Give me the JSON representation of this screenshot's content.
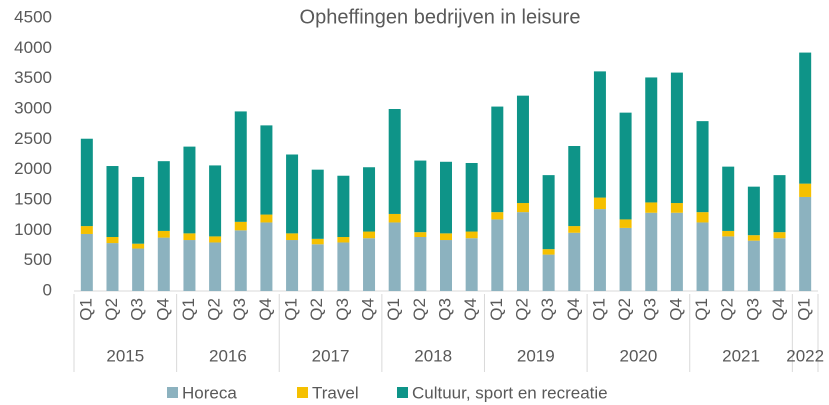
{
  "chart_data": {
    "type": "stacked-bar",
    "title": "Opheffingen bedrijven in leisure",
    "categories": [
      "Q1",
      "Q2",
      "Q3",
      "Q4",
      "Q1",
      "Q2",
      "Q3",
      "Q4",
      "Q1",
      "Q2",
      "Q3",
      "Q4",
      "Q1",
      "Q2",
      "Q3",
      "Q4",
      "Q1",
      "Q2",
      "Q3",
      "Q4",
      "Q1",
      "Q2",
      "Q3",
      "Q4",
      "Q1",
      "Q2",
      "Q3",
      "Q4",
      "Q1"
    ],
    "years": [
      "2015",
      "2016",
      "2017",
      "2018",
      "2019",
      "2020",
      "2021",
      "2022"
    ],
    "series": [
      {
        "name": "Horeca",
        "color": "#8cb2bf",
        "values": [
          940,
          790,
          700,
          880,
          840,
          800,
          1000,
          1130,
          840,
          770,
          800,
          870,
          1130,
          890,
          840,
          870,
          1180,
          1300,
          600,
          960,
          1350,
          1040,
          1290,
          1290,
          1130,
          900,
          830,
          870,
          1550
        ]
      },
      {
        "name": "Travel",
        "color": "#f5c000",
        "values": [
          130,
          100,
          80,
          110,
          110,
          100,
          140,
          130,
          110,
          90,
          90,
          110,
          140,
          80,
          110,
          110,
          120,
          150,
          90,
          110,
          190,
          140,
          170,
          160,
          170,
          90,
          90,
          100,
          220
        ]
      },
      {
        "name": "Cultuur, sport en recreatie",
        "color": "#0e9488",
        "values": [
          1440,
          1170,
          1100,
          1150,
          1430,
          1170,
          1820,
          1470,
          1300,
          1140,
          1010,
          1060,
          1730,
          1180,
          1180,
          1130,
          1740,
          1770,
          1220,
          1320,
          2080,
          1760,
          2060,
          2150,
          1500,
          1060,
          800,
          940,
          2160
        ]
      }
    ],
    "ylim": [
      0,
      4500
    ],
    "yticks": [
      0,
      500,
      1000,
      1500,
      2000,
      2500,
      3000,
      3500,
      4000,
      4500
    ],
    "legend": "bottom"
  }
}
